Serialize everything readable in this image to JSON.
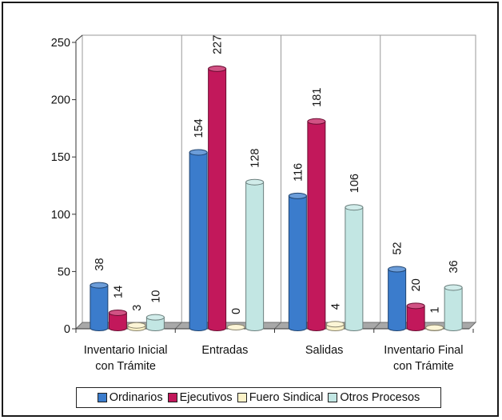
{
  "chart_data": {
    "type": "bar",
    "categories": [
      [
        "Inventario Inicial",
        "con Trámite"
      ],
      [
        "Entradas"
      ],
      [
        "Salidas"
      ],
      [
        "Inventario Final",
        "con Trámite"
      ]
    ],
    "series": [
      {
        "name": "Ordinarios",
        "values": [
          38,
          154,
          116,
          52
        ],
        "labels": [
          "38",
          "154",
          "116",
          "52"
        ],
        "color": "#3b7ccc"
      },
      {
        "name": "Ejecutivos",
        "values": [
          14,
          227,
          181,
          20
        ],
        "labels": [
          "14",
          "227",
          "181",
          "20"
        ],
        "color": "#c2185b"
      },
      {
        "name": "Fuero Sindical",
        "values": [
          3,
          0,
          4,
          1
        ],
        "labels": [
          "3",
          "0",
          "4",
          "1"
        ],
        "color": "#fbf2c8"
      },
      {
        "name": "Otros Procesos",
        "values": [
          10,
          128,
          106,
          36
        ],
        "labels": [
          "10",
          "128",
          "106",
          "36"
        ],
        "color": "#c2e6e3"
      }
    ],
    "yticks": [
      0,
      50,
      100,
      150,
      200,
      250
    ],
    "ylim": [
      0,
      250
    ],
    "grid": "vertical-category-separators",
    "legend_position": "bottom",
    "title": "",
    "xlabel": "",
    "ylabel": ""
  }
}
